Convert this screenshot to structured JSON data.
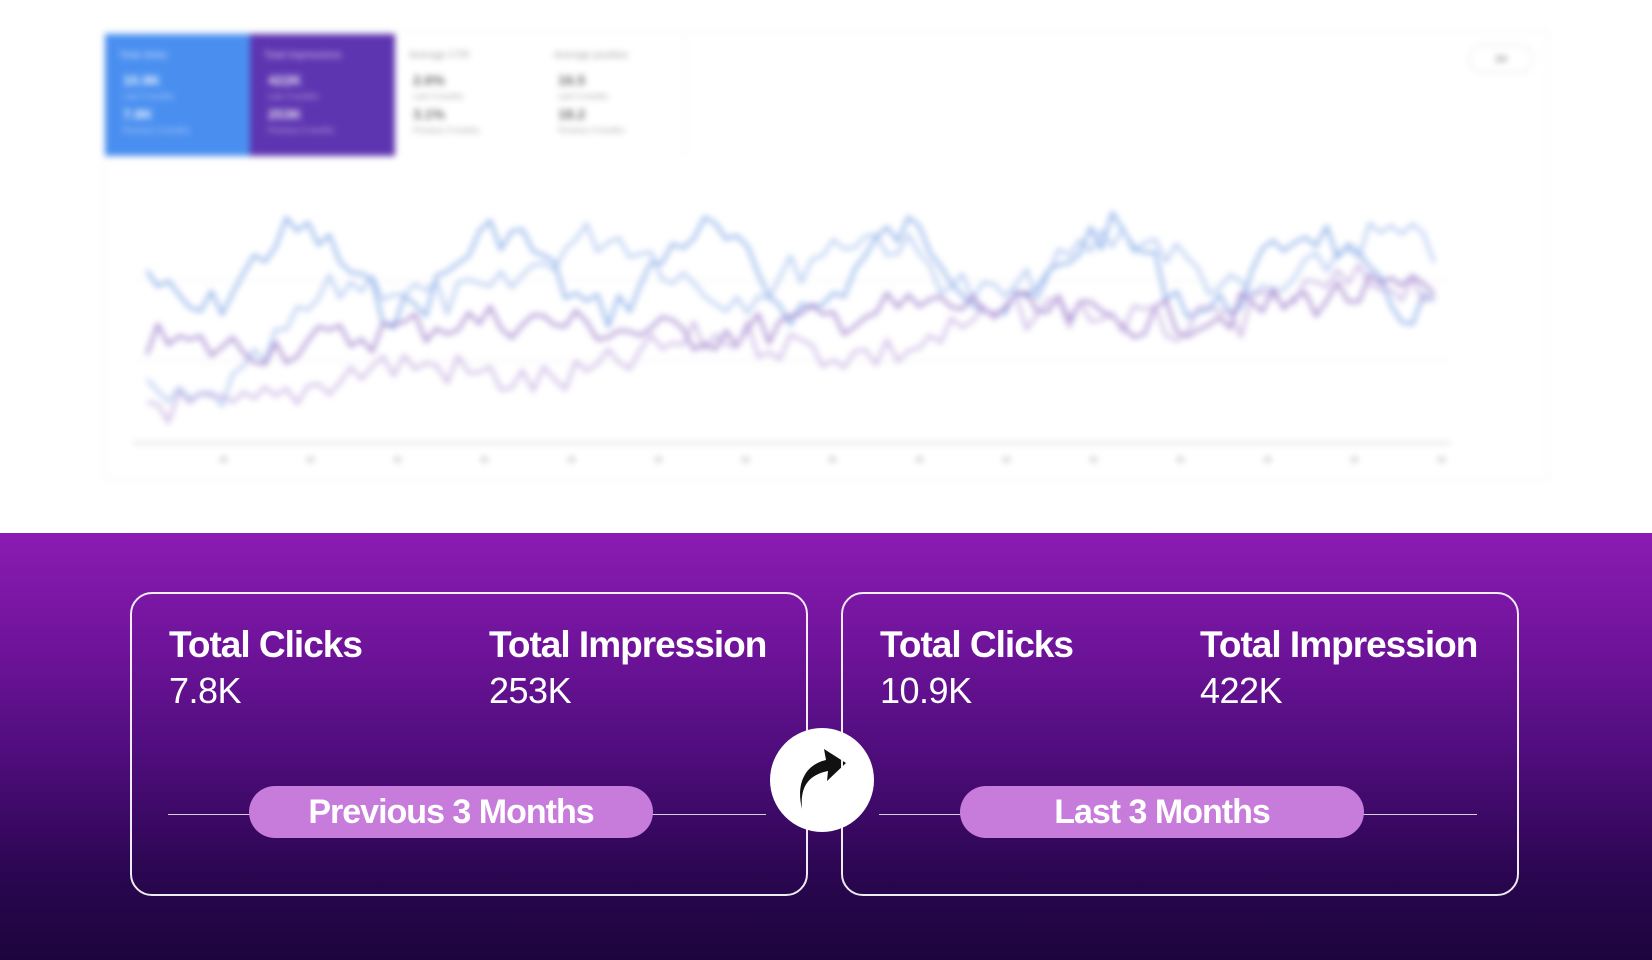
{
  "chart_preview": {
    "tiles": [
      {
        "label": "Total clicks",
        "value_1": "10.9K",
        "sub_1": "Last 3 months",
        "value_2": "7.8K",
        "sub_2": "Previous 3 months",
        "color": "#4a8ff0"
      },
      {
        "label": "Total impressions",
        "value_1": "422K",
        "sub_1": "Last 3 months",
        "value_2": "253K",
        "sub_2": "Previous 3 months",
        "color": "#5e35b1"
      },
      {
        "label": "Average CTR",
        "value_1": "2.6%",
        "sub_1": "Last 3 months",
        "value_2": "3.1%",
        "sub_2": "Previous 3 months",
        "color": "#ffffff"
      },
      {
        "label": "Average position",
        "value_1": "16.5",
        "sub_1": "Last 3 months",
        "value_2": "18.2",
        "sub_2": "Previous 3 months",
        "color": "#ffffff"
      }
    ],
    "range_button": "3M",
    "series_colors": [
      "#7fa6e6",
      "#a9c2ef",
      "#9b7bc9",
      "#c4aee0"
    ]
  },
  "comparison": {
    "previous": {
      "clicks_label": "Total Clicks",
      "clicks_value": "7.8K",
      "impressions_label": "Total Impression",
      "impressions_value": "253K",
      "period": "Previous 3 Months"
    },
    "last": {
      "clicks_label": "Total Clicks",
      "clicks_value": "10.9K",
      "impressions_label": "Total Impression",
      "impressions_value": "422K",
      "period": "Last 3 Months"
    },
    "arrow_icon": "curved-arrow-up-right-icon"
  },
  "colors": {
    "panel_top": "#8c1bb3",
    "panel_bottom": "#1c053d",
    "pill": "#c77bda",
    "text": "#ffffff"
  }
}
